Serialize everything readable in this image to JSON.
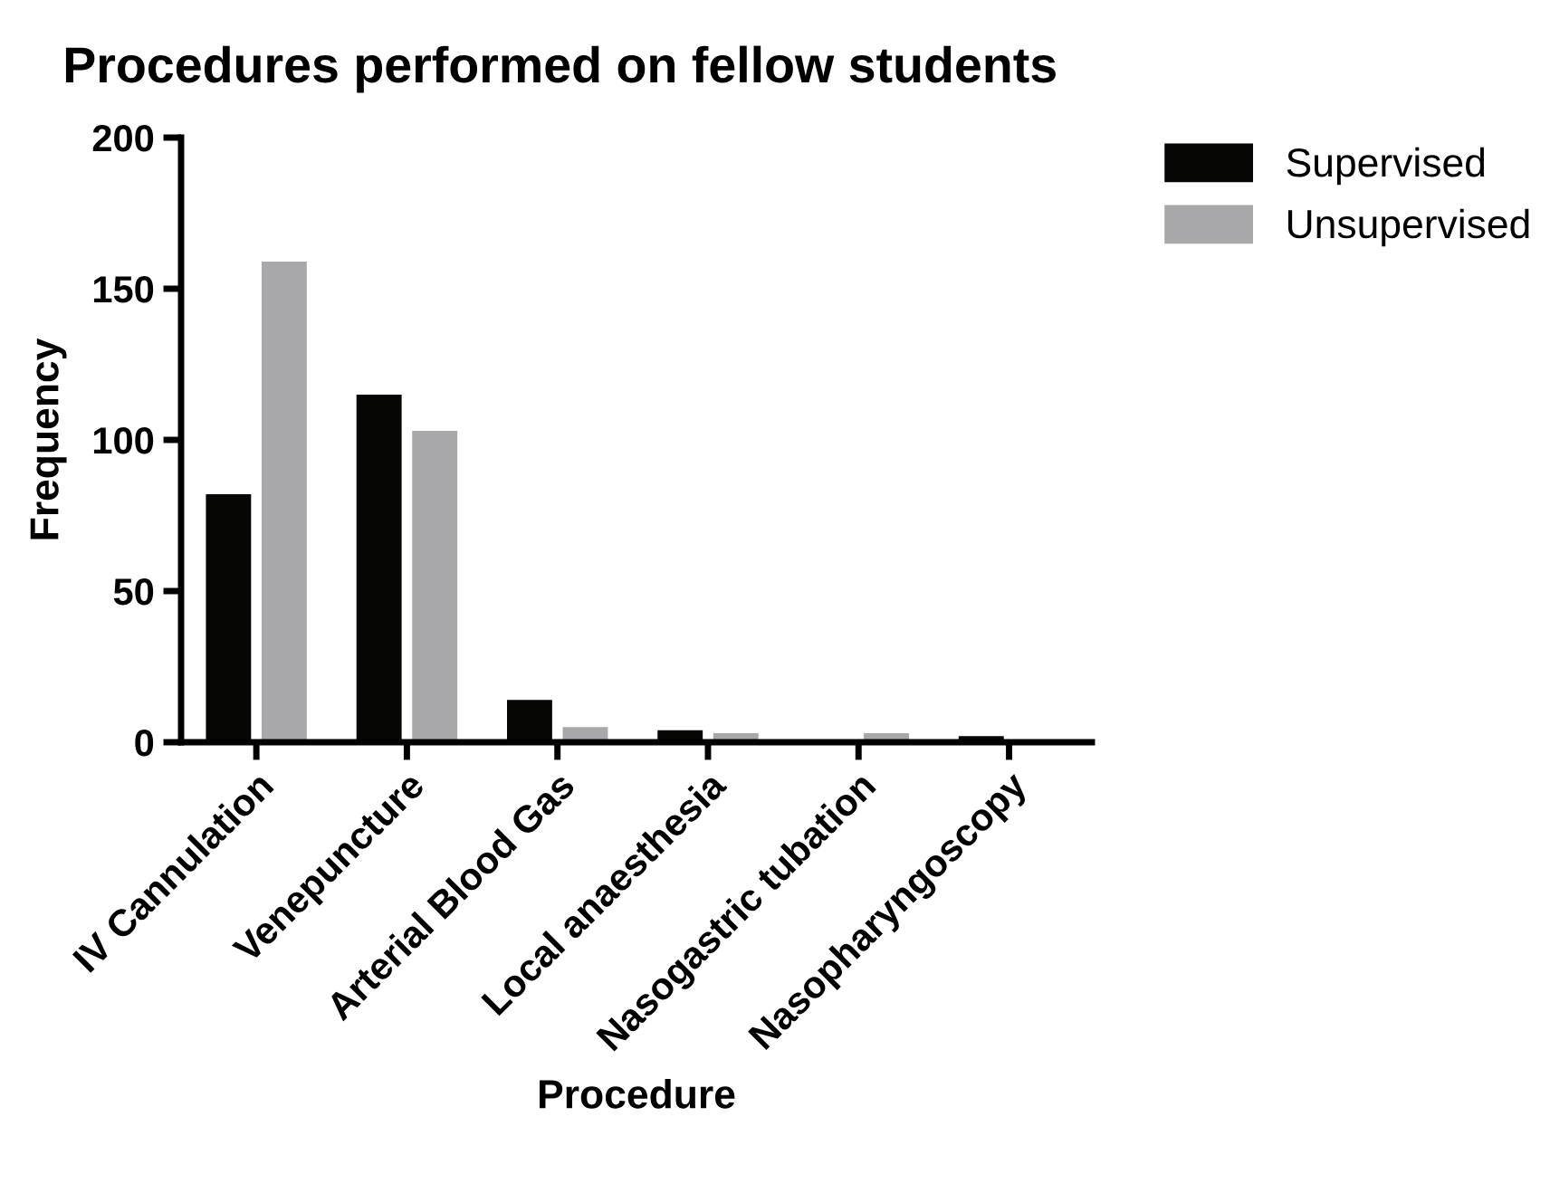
{
  "chart_data": {
    "type": "bar",
    "title": "Procedures performed on fellow students",
    "xlabel": "Procedure",
    "ylabel": "Frequency",
    "categories": [
      "IV Cannulation",
      "Venepuncture",
      "Arterial Blood Gas",
      "Local anaesthesia",
      "Nasogastric tubation",
      "Nasopharyngoscopy"
    ],
    "series": [
      {
        "name": "Supervised",
        "color": "#060604",
        "values": [
          82,
          115,
          14,
          4,
          0,
          2
        ]
      },
      {
        "name": "Unsupervised",
        "color": "#a8a8aa",
        "values": [
          159,
          103,
          5,
          3,
          3,
          0
        ]
      }
    ],
    "ylim": [
      0,
      200
    ],
    "yticks": [
      0,
      50,
      100,
      150,
      200
    ],
    "grid": false,
    "legend": "top right"
  }
}
